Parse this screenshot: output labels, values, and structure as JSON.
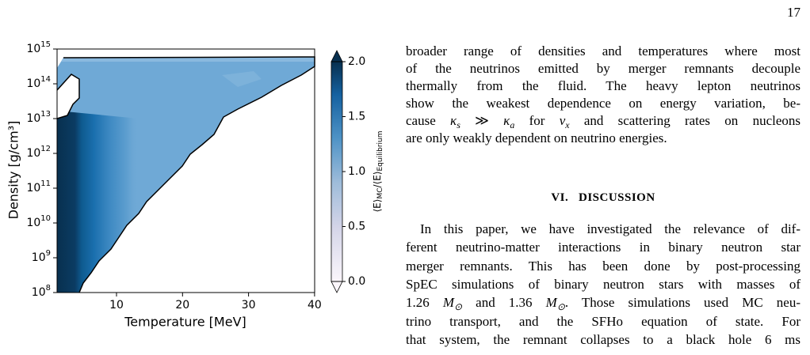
{
  "page_number": "17",
  "figure": {
    "xlabel": "Temperature [MeV]",
    "ylabel": "Density [g/cm³]",
    "xticks": [
      "10",
      "20",
      "30",
      "40"
    ],
    "yticks": [
      {
        "base": "10",
        "exp": "15"
      },
      {
        "base": "10",
        "exp": "14"
      },
      {
        "base": "10",
        "exp": "13"
      },
      {
        "base": "10",
        "exp": "12"
      },
      {
        "base": "10",
        "exp": "11"
      },
      {
        "base": "10",
        "exp": "10"
      },
      {
        "base": "10",
        "exp": "9"
      },
      {
        "base": "10",
        "exp": "8"
      }
    ],
    "colorbar": {
      "label": [
        {
          "text": "⟨E⟩"
        },
        {
          "text": "MC",
          "style": "sub"
        },
        {
          "text": "/⟨E⟩"
        },
        {
          "text": "Equilibrium",
          "style": "sub"
        }
      ],
      "ticks": [
        "2.0",
        "1.5",
        "1.0",
        "0.5",
        "0.0"
      ]
    }
  },
  "paragraphs": [
    [
      [
        {
          "text": "broader range of densities and temperatures where most"
        }
      ],
      [
        {
          "text": "of the neutrinos emitted by merger remnants decouple"
        }
      ],
      [
        {
          "text": "thermally from the fluid.  The heavy lepton neutrinos"
        }
      ],
      [
        {
          "text": "show the weakest dependence on energy variation, be-"
        }
      ],
      [
        {
          "text": "cause "
        },
        {
          "text": "κ",
          "style": "italic"
        },
        {
          "text": "s",
          "style": "sub"
        },
        {
          "text": " ≫ "
        },
        {
          "text": "κ",
          "style": "italic"
        },
        {
          "text": "a",
          "style": "sub"
        },
        {
          "text": " for "
        },
        {
          "text": "ν",
          "style": "italic"
        },
        {
          "text": "x",
          "style": "sub"
        },
        {
          "text": " and scattering rates on nucleons"
        }
      ],
      [
        {
          "text": "are only weakly dependent on neutrino energies."
        }
      ]
    ],
    [
      [
        {
          "text": "In this paper, we have investigated the relevance of dif-"
        }
      ],
      [
        {
          "text": "ferent neutrino-matter interactions in binary neutron star"
        }
      ],
      [
        {
          "text": "merger remnants.  This has been done by post-processing"
        }
      ],
      [
        {
          "text": "SpEC simulations of binary neutron stars with masses of"
        }
      ],
      [
        {
          "text": "1.26 "
        },
        {
          "text": "M",
          "style": "italic"
        },
        {
          "text": "⊙",
          "style": "sub"
        },
        {
          "text": " and 1.36 "
        },
        {
          "text": "M",
          "style": "italic"
        },
        {
          "text": "⊙",
          "style": "sub"
        },
        {
          "text": ". Those simulations used MC neu-"
        }
      ],
      [
        {
          "text": "trino transport, and the SFHo equation of state.   For"
        }
      ],
      [
        {
          "text": "that system, the remnant collapses to a black hole 6 ms"
        }
      ]
    ]
  ],
  "section": {
    "number": "VI.",
    "title": "DISCUSSION"
  }
}
